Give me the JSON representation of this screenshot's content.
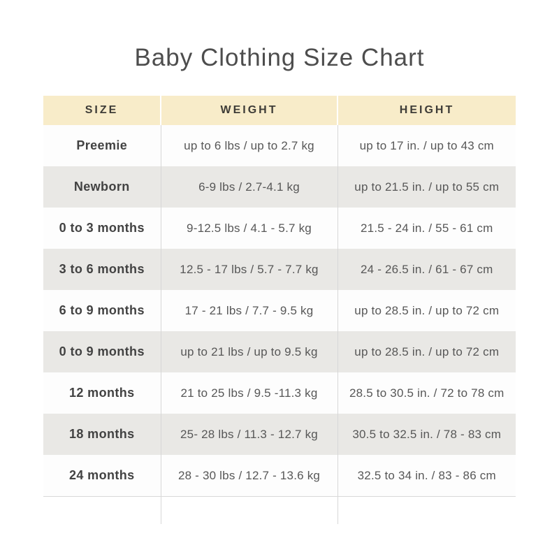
{
  "chart_data": {
    "type": "table",
    "title": "Baby Clothing Size Chart",
    "columns": [
      "SIZE",
      "WEIGHT",
      "HEIGHT"
    ],
    "rows": [
      {
        "size": "Preemie",
        "weight": "up to 6 lbs / up to 2.7 kg",
        "height": "up to 17 in. / up to 43 cm"
      },
      {
        "size": "Newborn",
        "weight": "6-9 lbs / 2.7-4.1 kg",
        "height": "up to 21.5 in. / up to 55 cm"
      },
      {
        "size": "0 to 3 months",
        "weight": "9-12.5 lbs / 4.1 - 5.7 kg",
        "height": "21.5 - 24 in. / 55 - 61 cm"
      },
      {
        "size": "3 to 6 months",
        "weight": "12.5 - 17 lbs / 5.7 - 7.7 kg",
        "height": "24 - 26.5 in. / 61 - 67 cm"
      },
      {
        "size": "6 to 9 months",
        "weight": "17 - 21 lbs / 7.7 - 9.5 kg",
        "height": "up to 28.5 in. / up to 72 cm"
      },
      {
        "size": "0 to 9 months",
        "weight": "up to 21 lbs / up to 9.5 kg",
        "height": "up to 28.5 in. / up to 72 cm"
      },
      {
        "size": "12 months",
        "weight": "21 to 25 lbs / 9.5 -11.3 kg",
        "height": "28.5 to 30.5 in. / 72 to 78 cm"
      },
      {
        "size": "18 months",
        "weight": "25- 28 lbs / 11.3 - 12.7 kg",
        "height": "30.5 to 32.5 in. / 78 - 83 cm"
      },
      {
        "size": "24 months",
        "weight": "28 - 30 lbs / 12.7 - 13.6 kg",
        "height": "32.5 to 34 in. / 83 - 86 cm"
      }
    ],
    "layout_hints": {
      "header_background": "#f8ecc9",
      "stripe_background": "#e9e8e5",
      "divider_color": "#d7d7d7",
      "title_color": "#4d4d4d",
      "header_text_color": "#3e3c37",
      "body_text_color": "#575757",
      "grid": "vertical dividers only, bottom rule after last row"
    }
  }
}
